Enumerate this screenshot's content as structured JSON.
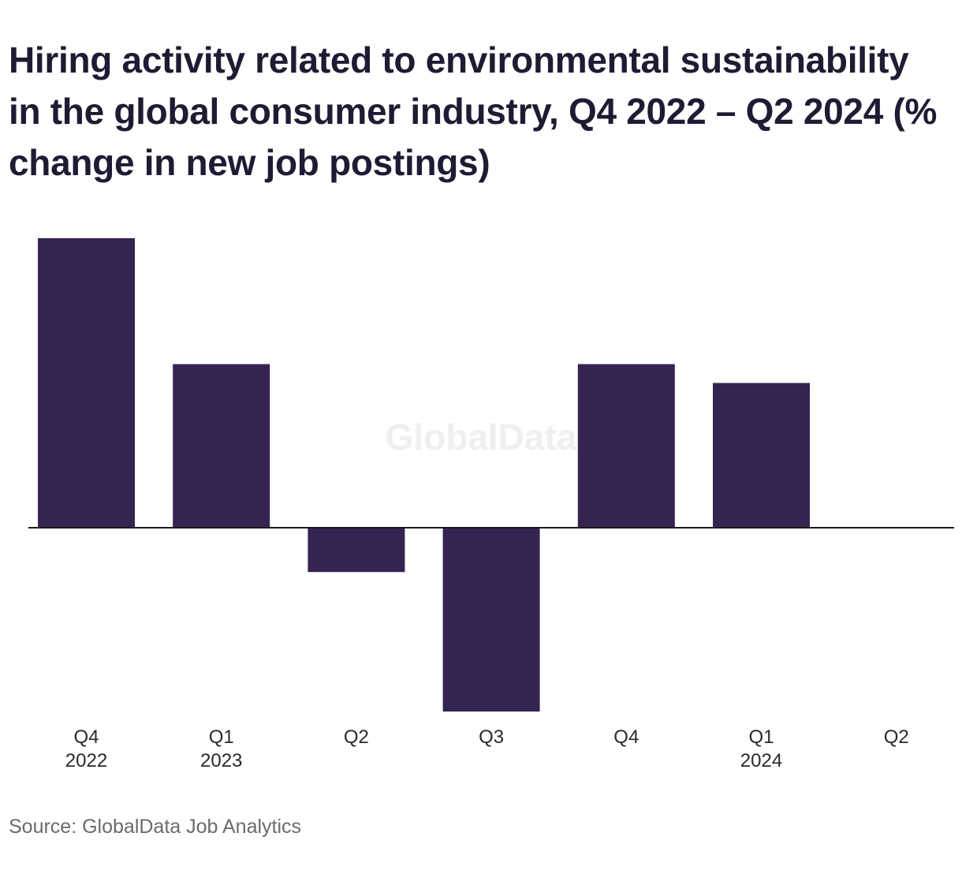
{
  "title": "Hiring activity related to environmental sustainability in the global consumer industry, Q4 2022 – Q2 2024 (% change in new job postings)",
  "source": "Source: GlobalData Job Analytics",
  "watermark": "GlobalData",
  "colors": {
    "bar": "#352451",
    "axis": "#1a1a1a",
    "title": "#1f1b33",
    "source": "#6b6b6b"
  },
  "chart_data": {
    "type": "bar",
    "categories": [
      "Q4 2022",
      "Q1 2023",
      "Q2 2023",
      "Q3 2023",
      "Q4 2023",
      "Q1 2024",
      "Q2 2024"
    ],
    "tick_labels": [
      {
        "quarter": "Q4",
        "year": "2022"
      },
      {
        "quarter": "Q1",
        "year": "2023"
      },
      {
        "quarter": "Q2",
        "year": ""
      },
      {
        "quarter": "Q3",
        "year": ""
      },
      {
        "quarter": "Q4",
        "year": ""
      },
      {
        "quarter": "Q1",
        "year": "2024"
      },
      {
        "quarter": "Q2",
        "year": ""
      }
    ],
    "values": [
      46,
      26,
      -7,
      -29,
      26,
      23,
      0
    ],
    "ylim": [
      -29,
      46
    ],
    "grid": false,
    "xlabel": "",
    "ylabel": ""
  }
}
